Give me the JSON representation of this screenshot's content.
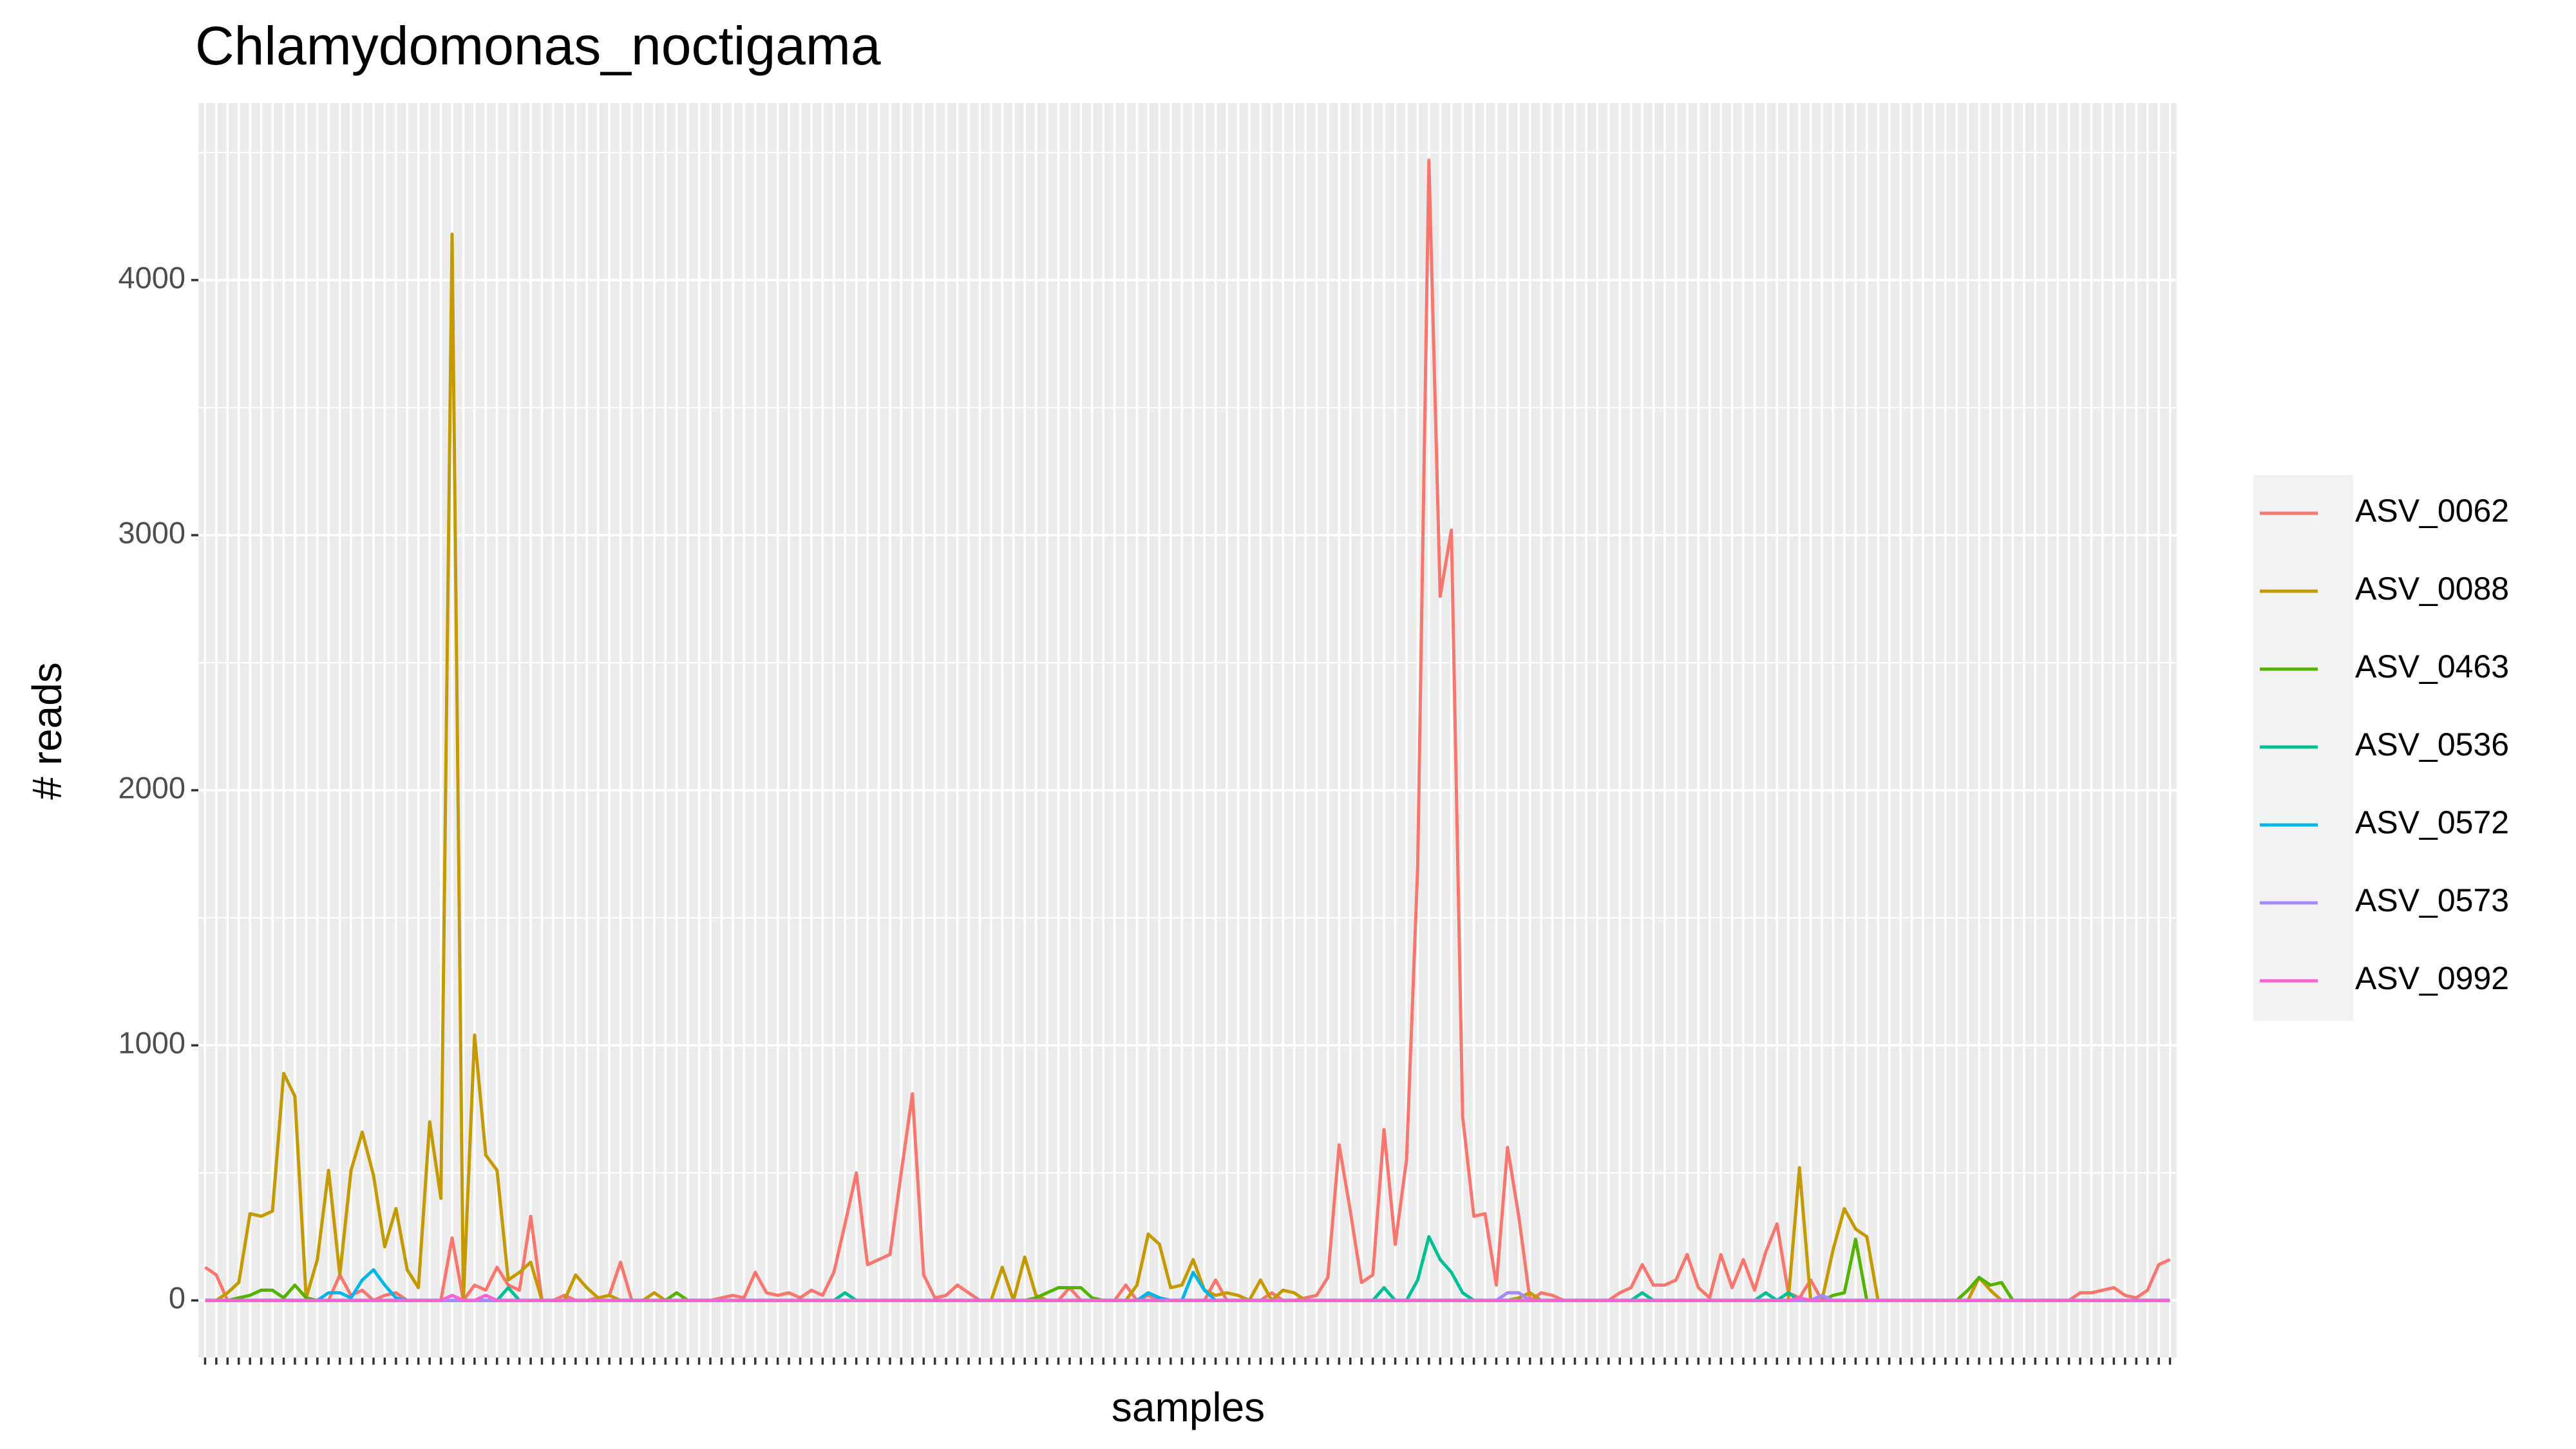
{
  "chart_data": {
    "type": "line",
    "title": "Chlamydomonas_noctigama",
    "x_label": "samples",
    "y_label": "# reads",
    "categories": [
      null,
      null,
      null,
      null,
      null,
      null,
      null,
      null,
      null,
      null,
      null,
      null,
      null,
      null,
      null,
      null,
      null,
      null,
      null,
      null,
      null,
      null,
      null,
      null,
      null,
      null,
      null,
      null,
      null,
      null,
      null,
      null,
      null,
      null,
      null,
      null,
      null,
      null,
      null,
      null,
      null,
      null,
      null,
      null,
      null,
      null,
      null,
      null,
      null,
      null,
      null,
      null,
      null,
      null,
      null,
      null,
      null,
      null,
      null,
      null,
      null,
      null,
      null,
      null,
      null,
      null,
      null,
      null,
      null,
      null,
      null,
      null,
      null,
      null,
      null,
      null,
      null,
      null,
      null,
      null,
      null,
      null,
      null,
      null,
      null,
      null,
      null,
      null,
      null,
      null,
      null,
      null,
      null,
      null,
      null,
      null,
      null,
      null,
      null,
      null,
      null,
      null,
      null,
      null,
      null,
      null,
      null,
      null,
      null,
      null,
      null,
      null,
      null,
      null,
      null,
      null,
      null,
      null,
      null,
      null,
      null,
      null,
      null,
      null,
      null,
      null,
      null,
      null,
      null,
      null,
      null,
      null,
      null,
      null,
      null,
      null,
      null,
      null,
      null,
      null,
      null,
      null,
      null,
      null,
      null,
      null,
      null,
      null,
      null,
      null,
      null,
      null,
      null,
      null,
      null,
      null,
      null,
      null,
      null,
      null,
      null,
      null,
      null,
      null,
      null,
      null,
      null,
      null,
      null,
      null,
      null,
      null,
      null,
      null,
      null,
      null
    ],
    "series": [
      {
        "name": "ASV_0062",
        "color": "#F8766D",
        "values": [
          130,
          100,
          0,
          0,
          0,
          0,
          0,
          0,
          0,
          0,
          0,
          0,
          100,
          20,
          40,
          0,
          20,
          30,
          0,
          0,
          0,
          0,
          245,
          0,
          60,
          40,
          130,
          60,
          40,
          330,
          0,
          0,
          20,
          0,
          0,
          10,
          20,
          150,
          0,
          0,
          0,
          0,
          0,
          0,
          0,
          0,
          10,
          20,
          10,
          110,
          30,
          20,
          30,
          10,
          40,
          20,
          110,
          300,
          500,
          140,
          160,
          180,
          500,
          810,
          100,
          10,
          20,
          60,
          30,
          0,
          0,
          0,
          0,
          0,
          0,
          0,
          0,
          50,
          0,
          0,
          0,
          0,
          60,
          0,
          20,
          0,
          0,
          0,
          0,
          0,
          80,
          0,
          0,
          0,
          0,
          30,
          0,
          0,
          10,
          20,
          90,
          610,
          350,
          70,
          100,
          670,
          220,
          550,
          1700,
          4470,
          2760,
          3020,
          720,
          330,
          340,
          60,
          600,
          330,
          0,
          30,
          20,
          0,
          0,
          0,
          0,
          0,
          30,
          50,
          140,
          60,
          60,
          80,
          180,
          50,
          10,
          180,
          50,
          160,
          40,
          190,
          300,
          30,
          10,
          80,
          0,
          0,
          0,
          0,
          0,
          0,
          0,
          0,
          0,
          0,
          0,
          0,
          0,
          0,
          0,
          0,
          0,
          0,
          0,
          0,
          0,
          0,
          0,
          30,
          30,
          40,
          50,
          20,
          10,
          40,
          140,
          160
        ]
      },
      {
        "name": "ASV_0088",
        "color": "#C49A00",
        "values": [
          0,
          0,
          30,
          70,
          340,
          330,
          350,
          890,
          800,
          10,
          160,
          510,
          100,
          510,
          660,
          490,
          210,
          360,
          120,
          50,
          700,
          400,
          4180,
          0,
          1040,
          570,
          510,
          80,
          110,
          150,
          0,
          0,
          0,
          100,
          50,
          10,
          20,
          0,
          0,
          0,
          30,
          0,
          0,
          0,
          0,
          0,
          0,
          0,
          0,
          0,
          0,
          0,
          0,
          0,
          0,
          0,
          0,
          0,
          0,
          0,
          0,
          0,
          0,
          0,
          0,
          0,
          0,
          0,
          0,
          0,
          0,
          130,
          0,
          170,
          20,
          0,
          0,
          0,
          0,
          0,
          0,
          0,
          0,
          60,
          260,
          220,
          50,
          60,
          160,
          40,
          20,
          30,
          20,
          0,
          80,
          0,
          40,
          30,
          0,
          0,
          0,
          0,
          0,
          0,
          0,
          0,
          0,
          0,
          0,
          0,
          0,
          0,
          0,
          0,
          0,
          0,
          0,
          10,
          30,
          0,
          0,
          0,
          0,
          0,
          0,
          0,
          0,
          0,
          0,
          0,
          0,
          0,
          0,
          0,
          0,
          0,
          0,
          0,
          0,
          0,
          0,
          0,
          520,
          0,
          0,
          200,
          360,
          280,
          250,
          0,
          0,
          0,
          0,
          0,
          0,
          0,
          0,
          0,
          90,
          40,
          0,
          0,
          0,
          0,
          0,
          0,
          0,
          0,
          0,
          0,
          0,
          0,
          0,
          0,
          0,
          0
        ]
      },
      {
        "name": "ASV_0463",
        "color": "#53B400",
        "values": [
          0,
          0,
          0,
          10,
          20,
          40,
          40,
          10,
          60,
          10,
          0,
          0,
          0,
          0,
          0,
          0,
          0,
          0,
          0,
          0,
          0,
          0,
          0,
          0,
          0,
          0,
          0,
          0,
          0,
          0,
          0,
          0,
          0,
          0,
          0,
          0,
          0,
          0,
          0,
          0,
          0,
          0,
          30,
          0,
          0,
          0,
          0,
          0,
          0,
          0,
          0,
          0,
          0,
          0,
          0,
          0,
          0,
          0,
          0,
          0,
          0,
          0,
          0,
          0,
          0,
          0,
          0,
          0,
          0,
          0,
          0,
          0,
          0,
          0,
          10,
          30,
          50,
          50,
          50,
          10,
          0,
          0,
          0,
          0,
          0,
          0,
          0,
          0,
          0,
          0,
          0,
          0,
          0,
          0,
          0,
          0,
          0,
          0,
          0,
          0,
          0,
          0,
          0,
          0,
          0,
          0,
          0,
          0,
          0,
          0,
          0,
          0,
          0,
          0,
          0,
          0,
          0,
          0,
          0,
          0,
          0,
          0,
          0,
          0,
          0,
          0,
          0,
          0,
          0,
          0,
          0,
          0,
          0,
          0,
          0,
          0,
          0,
          0,
          0,
          0,
          0,
          0,
          0,
          0,
          0,
          20,
          30,
          240,
          0,
          0,
          0,
          0,
          0,
          0,
          0,
          0,
          0,
          40,
          90,
          60,
          70,
          0,
          0,
          0,
          0,
          0,
          0,
          0,
          0,
          0,
          0,
          0,
          0,
          0,
          0,
          0
        ]
      },
      {
        "name": "ASV_0536",
        "color": "#00C094",
        "values": [
          0,
          0,
          0,
          0,
          0,
          0,
          0,
          0,
          0,
          0,
          0,
          0,
          0,
          0,
          0,
          0,
          0,
          0,
          0,
          0,
          0,
          0,
          0,
          0,
          0,
          0,
          0,
          50,
          0,
          0,
          0,
          0,
          0,
          0,
          0,
          0,
          0,
          0,
          0,
          0,
          0,
          0,
          0,
          0,
          0,
          0,
          0,
          0,
          0,
          0,
          0,
          0,
          0,
          0,
          0,
          0,
          0,
          30,
          0,
          0,
          0,
          0,
          0,
          0,
          0,
          0,
          0,
          0,
          0,
          0,
          0,
          0,
          0,
          0,
          0,
          0,
          0,
          0,
          0,
          0,
          0,
          0,
          0,
          0,
          0,
          0,
          0,
          0,
          0,
          0,
          0,
          0,
          0,
          0,
          0,
          0,
          0,
          0,
          0,
          0,
          0,
          0,
          0,
          0,
          0,
          50,
          0,
          0,
          80,
          250,
          160,
          110,
          30,
          0,
          0,
          0,
          0,
          0,
          0,
          0,
          0,
          0,
          0,
          0,
          0,
          0,
          0,
          0,
          30,
          0,
          0,
          0,
          0,
          0,
          0,
          0,
          0,
          0,
          0,
          30,
          0,
          30,
          0,
          0,
          0,
          0,
          0,
          0,
          0,
          0,
          0,
          0,
          0,
          0,
          0,
          0,
          0,
          0,
          0,
          0,
          0,
          0,
          0,
          0,
          0,
          0,
          0,
          0,
          0,
          0,
          0,
          0,
          0,
          0,
          0,
          0
        ]
      },
      {
        "name": "ASV_0572",
        "color": "#00B6EB",
        "values": [
          0,
          0,
          0,
          0,
          0,
          0,
          0,
          0,
          0,
          0,
          0,
          30,
          30,
          10,
          80,
          120,
          60,
          10,
          0,
          0,
          0,
          0,
          0,
          0,
          0,
          0,
          0,
          0,
          0,
          0,
          0,
          0,
          0,
          0,
          0,
          0,
          0,
          0,
          0,
          0,
          0,
          0,
          0,
          0,
          0,
          0,
          0,
          0,
          0,
          0,
          0,
          0,
          0,
          0,
          0,
          0,
          0,
          0,
          0,
          0,
          0,
          0,
          0,
          0,
          0,
          0,
          0,
          0,
          0,
          0,
          0,
          0,
          0,
          0,
          0,
          0,
          0,
          0,
          0,
          0,
          0,
          0,
          0,
          0,
          30,
          10,
          0,
          0,
          110,
          40,
          0,
          0,
          0,
          0,
          0,
          0,
          0,
          0,
          0,
          0,
          0,
          0,
          0,
          0,
          0,
          0,
          0,
          0,
          0,
          0,
          0,
          0,
          0,
          0,
          0,
          0,
          0,
          0,
          0,
          0,
          0,
          0,
          0,
          0,
          0,
          0,
          0,
          0,
          0,
          0,
          0,
          0,
          0,
          0,
          0,
          0,
          0,
          0,
          0,
          0,
          0,
          0,
          0,
          0,
          0,
          0,
          0,
          0,
          0,
          0,
          0,
          0,
          0,
          0,
          0,
          0,
          0,
          0,
          0,
          0,
          0,
          0,
          0,
          0,
          0,
          0,
          0,
          0,
          0,
          0,
          0,
          0,
          0,
          0,
          0,
          0
        ]
      },
      {
        "name": "ASV_0573",
        "color": "#A58AFF",
        "values": [
          0,
          0,
          0,
          0,
          0,
          0,
          0,
          0,
          0,
          0,
          0,
          0,
          0,
          0,
          0,
          0,
          0,
          0,
          0,
          0,
          0,
          0,
          0,
          0,
          0,
          0,
          0,
          0,
          0,
          0,
          0,
          0,
          0,
          0,
          0,
          0,
          0,
          0,
          0,
          0,
          0,
          0,
          0,
          0,
          0,
          0,
          0,
          0,
          0,
          0,
          0,
          0,
          0,
          0,
          0,
          0,
          0,
          0,
          0,
          0,
          0,
          0,
          0,
          0,
          0,
          0,
          0,
          0,
          0,
          0,
          0,
          0,
          0,
          0,
          0,
          0,
          0,
          0,
          0,
          0,
          0,
          0,
          0,
          0,
          0,
          0,
          0,
          0,
          0,
          0,
          0,
          0,
          0,
          0,
          0,
          0,
          0,
          0,
          0,
          0,
          0,
          0,
          0,
          0,
          0,
          0,
          0,
          0,
          0,
          0,
          0,
          0,
          0,
          0,
          0,
          0,
          30,
          30,
          0,
          0,
          0,
          0,
          0,
          0,
          0,
          0,
          0,
          0,
          0,
          0,
          0,
          0,
          0,
          0,
          0,
          0,
          0,
          0,
          0,
          0,
          0,
          0,
          0,
          0,
          20,
          0,
          0,
          0,
          0,
          0,
          0,
          0,
          0,
          0,
          0,
          0,
          0,
          0,
          0,
          0,
          0,
          0,
          0,
          0,
          0,
          0,
          0,
          0,
          0,
          0,
          0,
          0,
          0,
          0,
          0,
          0
        ]
      },
      {
        "name": "ASV_0992",
        "color": "#FB61D7",
        "values": [
          0,
          0,
          0,
          0,
          0,
          0,
          0,
          0,
          0,
          0,
          0,
          0,
          0,
          0,
          0,
          0,
          0,
          0,
          0,
          0,
          0,
          0,
          20,
          0,
          0,
          20,
          0,
          0,
          0,
          0,
          0,
          0,
          0,
          0,
          0,
          0,
          0,
          0,
          0,
          0,
          0,
          0,
          0,
          0,
          0,
          0,
          0,
          0,
          0,
          0,
          0,
          0,
          0,
          0,
          0,
          0,
          0,
          0,
          0,
          0,
          0,
          0,
          0,
          0,
          0,
          0,
          0,
          0,
          0,
          0,
          0,
          0,
          0,
          0,
          0,
          0,
          0,
          0,
          0,
          0,
          0,
          0,
          0,
          0,
          0,
          0,
          0,
          0,
          0,
          0,
          0,
          0,
          0,
          0,
          0,
          0,
          0,
          0,
          0,
          0,
          0,
          0,
          0,
          0,
          0,
          0,
          0,
          0,
          0,
          0,
          0,
          0,
          0,
          0,
          0,
          0,
          0,
          0,
          0,
          0,
          0,
          0,
          0,
          0,
          0,
          0,
          0,
          0,
          0,
          0,
          0,
          0,
          0,
          0,
          0,
          0,
          0,
          0,
          0,
          0,
          0,
          0,
          10,
          0,
          0,
          0,
          0,
          0,
          0,
          0,
          0,
          0,
          0,
          0,
          0,
          0,
          0,
          0,
          0,
          0,
          0,
          0,
          0,
          0,
          0,
          0,
          0,
          0,
          0,
          0,
          0,
          0,
          0,
          0,
          0,
          0
        ]
      }
    ],
    "ylim": [
      -224,
      4694
    ],
    "yticks": [
      0,
      1000,
      2000,
      3000,
      4000
    ],
    "y_minor_grid": [
      500,
      1500,
      2500,
      3500,
      4500
    ],
    "grid": true,
    "legend": "right"
  }
}
